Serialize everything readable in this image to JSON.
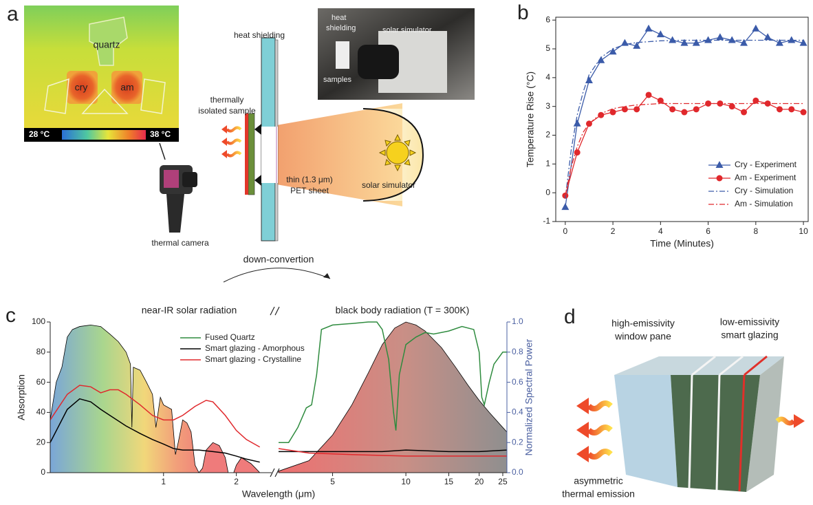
{
  "panel_labels": [
    "a",
    "b",
    "c",
    "d"
  ],
  "panel_a": {
    "thermal_image": {
      "labels": [
        "quartz",
        "cry",
        "am"
      ],
      "colorbar_min": "28 °C",
      "colorbar_max": "38 °C"
    },
    "photo_labels": {
      "heat_shielding": [
        "heat",
        "shielding"
      ],
      "solar_simulator": "solar simulator",
      "samples": "samples"
    },
    "heat_shielding": "heat shielding",
    "sample": [
      "thermally",
      "isolated sample"
    ],
    "pet_sheet": [
      "thin (1.3 μm)",
      "PET sheet"
    ],
    "solar_simulator": "solar simulator",
    "thermal_camera": "thermal camera"
  },
  "chart_data": [
    {
      "type": "line",
      "xlabel": "Time (Minutes)",
      "ylabel": "Temperature Rise (°C)",
      "xlim": [
        -0.4,
        10.2
      ],
      "ylim": [
        -1,
        6.1
      ],
      "xticks": [
        0,
        2,
        4,
        6,
        8,
        10
      ],
      "yticks": [
        -1,
        0,
        1,
        2,
        3,
        4,
        5,
        6
      ],
      "legend": "lower right",
      "series": [
        {
          "name": "Cry - Experiment",
          "color": "#3b5ba9",
          "marker": "triangle",
          "linestyle": "solid",
          "x": [
            0,
            0.5,
            1,
            1.5,
            2,
            2.5,
            3,
            3.5,
            4,
            4.5,
            5,
            5.5,
            6,
            6.5,
            7,
            7.5,
            8,
            8.5,
            9,
            9.5,
            10
          ],
          "values": [
            -0.5,
            2.4,
            3.9,
            4.6,
            4.9,
            5.2,
            5.1,
            5.7,
            5.5,
            5.3,
            5.2,
            5.2,
            5.3,
            5.4,
            5.3,
            5.2,
            5.7,
            5.4,
            5.2,
            5.3,
            5.2
          ]
        },
        {
          "name": "Am - Experiment",
          "color": "#e0282c",
          "marker": "circle",
          "linestyle": "solid",
          "x": [
            0,
            0.5,
            1,
            1.5,
            2,
            2.5,
            3,
            3.5,
            4,
            4.5,
            5,
            5.5,
            6,
            6.5,
            7,
            7.5,
            8,
            8.5,
            9,
            9.5,
            10
          ],
          "values": [
            -0.1,
            1.4,
            2.4,
            2.7,
            2.8,
            2.9,
            2.9,
            3.4,
            3.2,
            2.9,
            2.8,
            2.9,
            3.1,
            3.1,
            3.0,
            2.8,
            3.2,
            3.1,
            2.9,
            2.9,
            2.8
          ]
        },
        {
          "name": "Cry - Simulation",
          "color": "#3b5ba9",
          "linestyle": "dashdot",
          "x": [
            0,
            0.25,
            0.5,
            0.75,
            1,
            1.5,
            2,
            2.5,
            3,
            4,
            5,
            6,
            7,
            8,
            9,
            10
          ],
          "values": [
            -0.2,
            1.5,
            2.7,
            3.5,
            4.1,
            4.7,
            5.0,
            5.15,
            5.22,
            5.28,
            5.3,
            5.3,
            5.3,
            5.3,
            5.3,
            5.3
          ]
        },
        {
          "name": "Am - Simulation",
          "color": "#e0282c",
          "linestyle": "dashdot",
          "x": [
            0,
            0.25,
            0.5,
            0.75,
            1,
            1.5,
            2,
            2.5,
            3,
            4,
            5,
            6,
            7,
            8,
            9,
            10
          ],
          "values": [
            -0.1,
            0.9,
            1.6,
            2.1,
            2.4,
            2.75,
            2.92,
            3.0,
            3.05,
            3.1,
            3.1,
            3.1,
            3.1,
            3.1,
            3.1,
            3.1
          ]
        }
      ]
    },
    {
      "type": "line",
      "xlabel": "Wavelength (μm)",
      "ylabel": "Absorption",
      "y2label": "Normalized Spectral Power",
      "xscale": "log",
      "xlim": [
        0.34,
        26
      ],
      "x_break": [
        2.8,
        3
      ],
      "xticks": [
        1,
        2,
        5,
        10,
        15,
        20,
        25
      ],
      "ylim": [
        0,
        100
      ],
      "yticks": [
        0,
        20,
        40,
        60,
        80,
        100
      ],
      "y2lim": [
        0,
        1
      ],
      "y2ticks": [
        {
          "value": 0,
          "label": "0.0"
        },
        0.2,
        0.4,
        0.6,
        0.8,
        {
          "value": 1,
          "label": "1.0"
        }
      ],
      "legend": "upper left",
      "annotations": [
        "near-IR solar radiation",
        "black body radiation (T = 300K)",
        "down-convertion"
      ],
      "series": [
        {
          "color": "#000000",
          "area": true,
          "x": [
            0.34,
            0.36,
            0.38,
            0.4,
            0.42,
            0.45,
            0.5,
            0.55,
            0.6,
            0.65,
            0.7,
            0.73,
            0.74,
            0.75,
            0.8,
            0.85,
            0.9,
            0.93,
            0.97,
            1.0,
            1.08,
            1.12,
            1.15,
            1.2,
            1.25,
            1.3,
            1.35,
            1.4,
            1.45,
            1.5,
            1.6,
            1.7,
            1.8,
            1.85,
            1.95,
            2.0,
            2.1,
            2.2,
            2.3,
            2.4,
            2.5
          ],
          "values": [
            35,
            60,
            70,
            90,
            95,
            97,
            98,
            97,
            92,
            87,
            80,
            72,
            30,
            70,
            68,
            60,
            52,
            30,
            50,
            45,
            42,
            12,
            20,
            35,
            33,
            27,
            5,
            0,
            3,
            15,
            20,
            18,
            10,
            0,
            0,
            5,
            10,
            8,
            6,
            3,
            0
          ]
        },
        {
          "color": "#000000",
          "area": true,
          "axis": "y2",
          "x": [
            3,
            4,
            5,
            6,
            7,
            8,
            9,
            10,
            11,
            12,
            14,
            16,
            18,
            20,
            22,
            25,
            26
          ],
          "values": [
            0.01,
            0.08,
            0.25,
            0.45,
            0.66,
            0.85,
            0.96,
            1.0,
            0.98,
            0.94,
            0.83,
            0.7,
            0.58,
            0.48,
            0.4,
            0.3,
            0.27
          ]
        },
        {
          "name": "Fused Quartz",
          "color": "#2e8b3e",
          "x": [
            3,
            3.3,
            3.6,
            3.9,
            4.1,
            4.3,
            4.5,
            5,
            6,
            7,
            7.6,
            8,
            8.5,
            8.9,
            9.1,
            9.4,
            10,
            11,
            12,
            13,
            15,
            17,
            19,
            20,
            20.5,
            21,
            22,
            23,
            25,
            26
          ],
          "values": [
            20,
            20,
            30,
            43,
            45,
            65,
            95,
            98,
            99,
            100,
            100,
            95,
            75,
            40,
            28,
            65,
            85,
            90,
            93,
            92,
            94,
            97,
            95,
            80,
            50,
            45,
            60,
            72,
            80,
            80
          ]
        },
        {
          "name": "Smart glazing - Amorphous",
          "color": "#000000",
          "x": [
            0.34,
            0.4,
            0.45,
            0.5,
            0.55,
            0.6,
            0.7,
            0.8,
            0.9,
            1.0,
            1.1,
            1.2,
            1.4,
            1.6,
            1.8,
            2.0,
            2.2,
            2.5,
            3,
            5,
            8,
            10,
            15,
            20,
            26
          ],
          "values": [
            20,
            42,
            49,
            47,
            42,
            38,
            31,
            26,
            22,
            19,
            16,
            15,
            15,
            14,
            13,
            11,
            9,
            7,
            14,
            14,
            14,
            15,
            14,
            14,
            15
          ]
        },
        {
          "name": "Smart glazing - Crystalline",
          "color": "#e0282c",
          "x": [
            0.34,
            0.4,
            0.45,
            0.5,
            0.55,
            0.6,
            0.65,
            0.7,
            0.8,
            0.9,
            1.0,
            1.1,
            1.2,
            1.35,
            1.5,
            1.6,
            1.8,
            2.0,
            2.2,
            2.5,
            3,
            4,
            6,
            10,
            15,
            20,
            26
          ],
          "values": [
            35,
            52,
            58,
            57,
            53,
            55,
            55,
            52,
            45,
            38,
            35,
            35,
            38,
            44,
            48,
            47,
            38,
            28,
            22,
            17,
            16,
            13,
            12,
            11,
            11,
            11,
            11
          ]
        }
      ]
    }
  ],
  "panel_d": {
    "window_pane": [
      "high-emissivity",
      "window pane"
    ],
    "smart_glazing": [
      "low-emissivity",
      "smart glazing"
    ],
    "emission": [
      "asymmetric",
      "thermal emission"
    ]
  }
}
